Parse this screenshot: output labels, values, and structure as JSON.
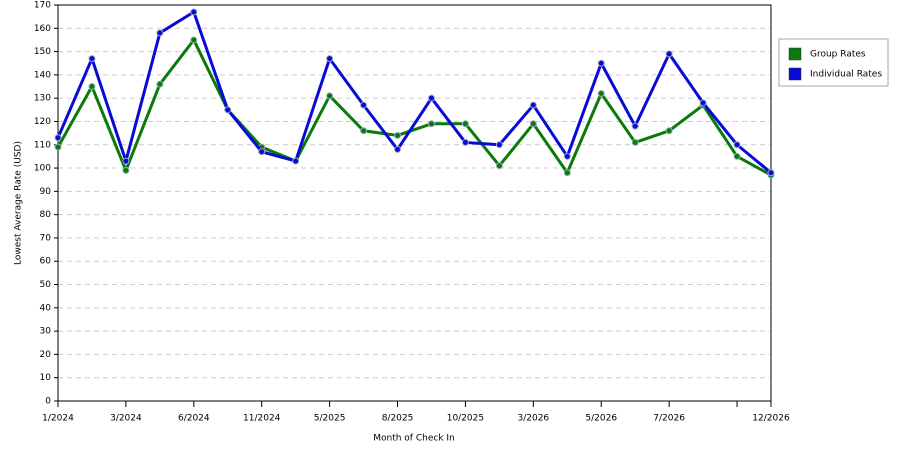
{
  "chart_data": {
    "type": "line",
    "x_label": "Month of Check In",
    "y_label": "Lowest Average Rate (USD)",
    "categories": [
      "1/2024",
      null,
      "3/2024",
      null,
      "6/2024",
      null,
      "11/2024",
      null,
      "5/2025",
      null,
      "8/2025",
      null,
      "10/2025",
      null,
      "3/2026",
      null,
      "5/2026",
      null,
      "7/2026",
      null,
      null,
      "12/2026"
    ],
    "series": [
      {
        "name": "Group Rates",
        "color": "#0a7a0a",
        "values": [
          109,
          135,
          99,
          136,
          155,
          125,
          109,
          103,
          131,
          116,
          114,
          119,
          119,
          101,
          119,
          98,
          132,
          111,
          116,
          127,
          105,
          97
        ]
      },
      {
        "name": "Individual Rates",
        "color": "#0a0ad8",
        "values": [
          113,
          147,
          103,
          158,
          167,
          125,
          107,
          103,
          147,
          127,
          108,
          130,
          111,
          110,
          127,
          105,
          145,
          118,
          149,
          128,
          110,
          98
        ]
      }
    ],
    "ylim": [
      0,
      170
    ],
    "yticks": [
      0,
      10,
      20,
      30,
      40,
      50,
      60,
      70,
      80,
      90,
      100,
      110,
      120,
      130,
      140,
      150,
      160,
      170
    ],
    "grid": true,
    "legend": "right"
  }
}
